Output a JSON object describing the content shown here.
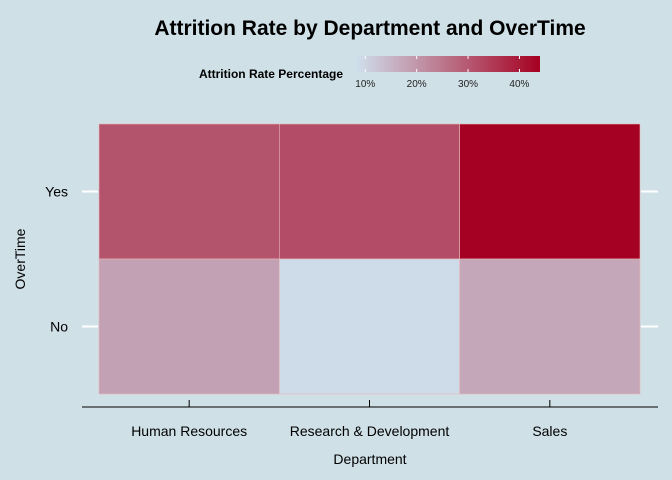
{
  "chart_data": {
    "type": "heatmap",
    "title": "Attrition Rate by Department and OverTime",
    "xlabel": "Department",
    "ylabel": "OverTime",
    "x_categories": [
      "Human Resources",
      "Research & Development",
      "Sales"
    ],
    "y_categories": [
      "No",
      "Yes"
    ],
    "values": [
      {
        "x": "Human Resources",
        "y": "Yes",
        "value": 30.8
      },
      {
        "x": "Research & Development",
        "y": "Yes",
        "value": 31.9
      },
      {
        "x": "Sales",
        "y": "Yes",
        "value": 43.8
      },
      {
        "x": "Human Resources",
        "y": "No",
        "value": 18.2
      },
      {
        "x": "Research & Development",
        "y": "No",
        "value": 8.8
      },
      {
        "x": "Sales",
        "y": "No",
        "value": 17.3
      }
    ],
    "legend": {
      "title": "Attrition Rate Percentage",
      "position": "top",
      "range": [
        8.0,
        44.0
      ],
      "ticks": [
        10,
        20,
        30,
        40
      ],
      "tick_labels": [
        "10%",
        "20%",
        "30%",
        "40%"
      ],
      "color_low": "#cfe1ee",
      "color_high": "#a50021"
    },
    "grid": false,
    "background": "#cfe0e7"
  }
}
